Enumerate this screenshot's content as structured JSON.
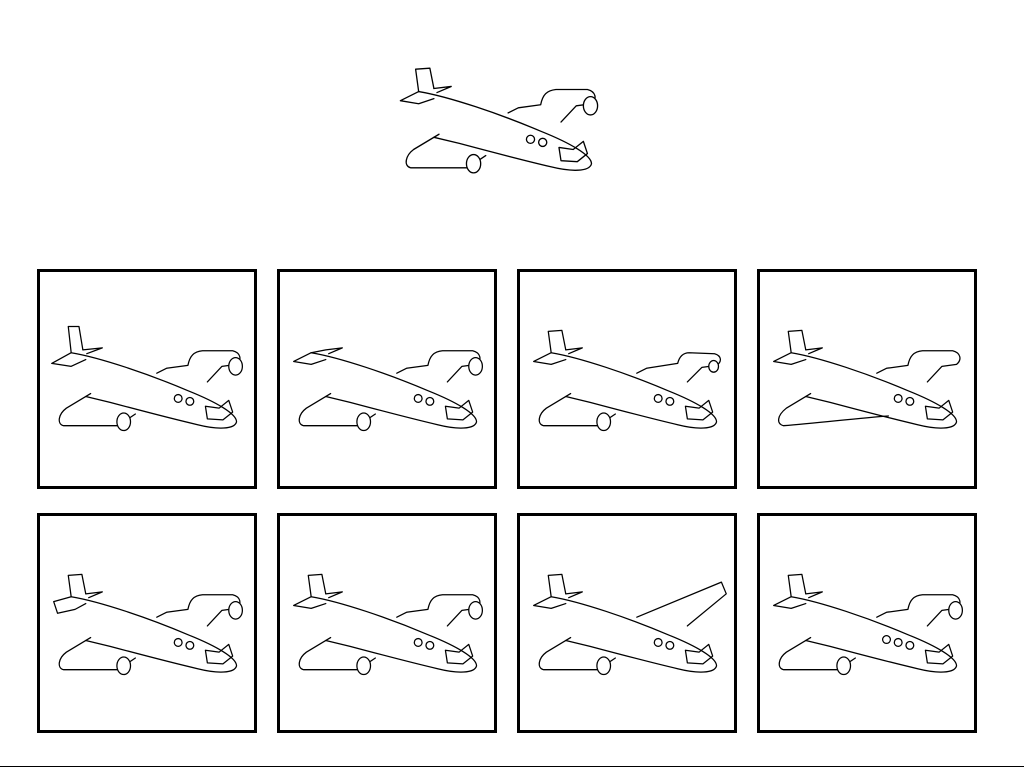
{
  "game": {
    "type": "spot-the-match",
    "target_icon": "airplane-icon",
    "option_count": 8,
    "options": [
      {
        "id": 1,
        "variant": "standard-tail"
      },
      {
        "id": 2,
        "variant": "no-tail-fin"
      },
      {
        "id": 3,
        "variant": "short-top-wing"
      },
      {
        "id": 4,
        "variant": "no-bottom-engine"
      },
      {
        "id": 5,
        "variant": "extra-tail-fin"
      },
      {
        "id": 6,
        "variant": "exact-match"
      },
      {
        "id": 7,
        "variant": "pointed-top-wing"
      },
      {
        "id": 8,
        "variant": "three-windows"
      }
    ],
    "colors": {
      "background": "#ffffff",
      "line": "#000000"
    }
  }
}
